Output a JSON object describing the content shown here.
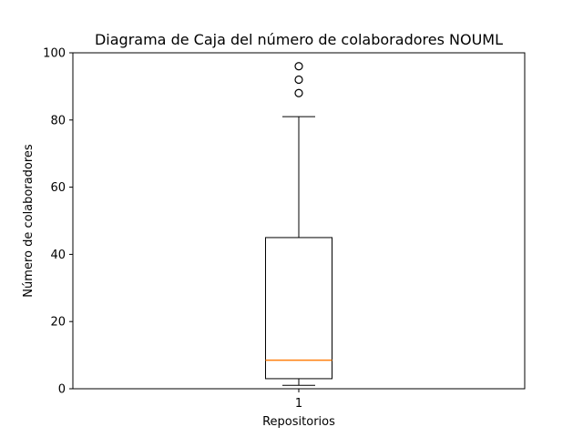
{
  "chart_data": {
    "type": "box",
    "title": "Diagrama de Caja del número de colaboradores NOUML",
    "xlabel": "Repositorios",
    "ylabel": "Número de colaboradores",
    "ylim": [
      0,
      100
    ],
    "y_ticks": [
      0,
      20,
      40,
      60,
      80,
      100
    ],
    "categories": [
      "1"
    ],
    "boxes": [
      {
        "category": "1",
        "whisker_low": 1,
        "q1": 3,
        "median": 8.5,
        "q3": 45,
        "whisker_high": 81,
        "outliers": [
          88,
          92,
          96
        ]
      }
    ],
    "grid": false,
    "colors": {
      "box": "#000000",
      "median": "#ff7f0e",
      "outlier": "#000000"
    }
  }
}
